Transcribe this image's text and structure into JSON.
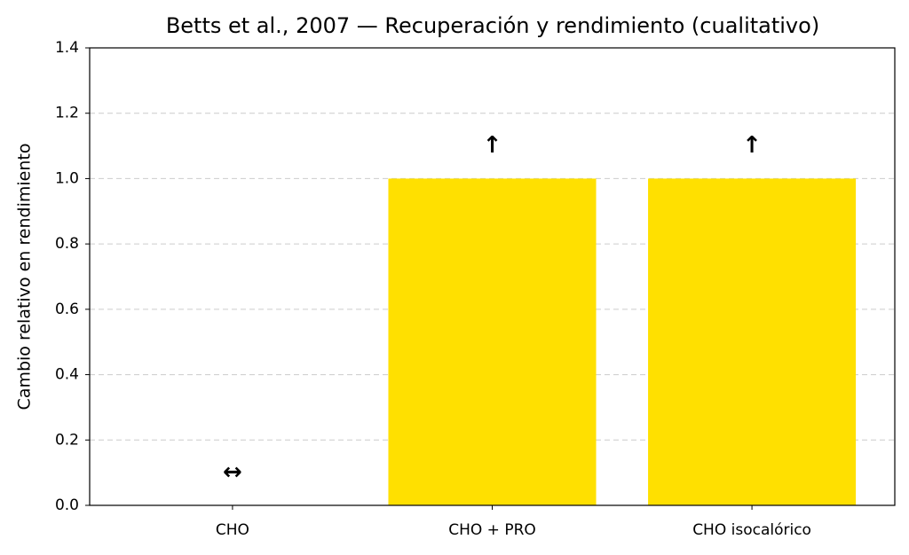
{
  "chart_data": {
    "type": "bar",
    "title": "Betts et al., 2007 — Recuperación y rendimiento (cualitativo)",
    "y_label": "Cambio relativo en rendimiento",
    "categories": [
      "CHO",
      "CHO + PRO",
      "CHO isocalórico"
    ],
    "values": [
      0,
      1,
      1
    ],
    "value_labels": [
      "↔",
      "↑",
      "↑"
    ],
    "color": "#ffe000",
    "ylim": [
      0,
      1.4
    ],
    "yticks": [
      {
        "value": 0,
        "label": "0.0"
      },
      0.2,
      0.4,
      0.6,
      0.8,
      {
        "value": 1,
        "label": "1.0"
      },
      1.2,
      1.4
    ],
    "grid": true
  }
}
